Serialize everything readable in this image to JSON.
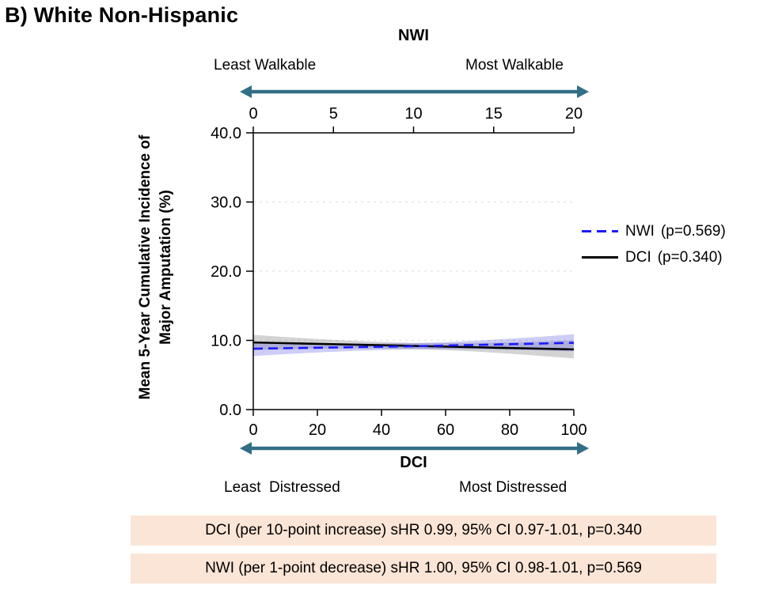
{
  "title": "B) White Non-Hispanic",
  "colors": {
    "arrow": "#326f87",
    "nwi_line": "#1a1aff",
    "dci_line": "#000000",
    "nwi_band": "rgba(90,90,230,0.30)",
    "dci_band": "rgba(130,130,130,0.35)",
    "note_background": "#fbe5d6",
    "gridline": "#dcdcdc"
  },
  "ylabel_lines": [
    "Mean 5-Year Cumulative Incidence of",
    "Major Amputation (%)"
  ],
  "annotations": [
    "DCI (per 10-point increase) sHR 0.99, 95% CI 0.97-1.01, p=0.340",
    "NWI (per 1-point decrease) sHR 1.00, 95% CI 0.98-1.01, p=0.569"
  ],
  "chart_data": {
    "type": "line",
    "title": "B) White Non-Hispanic",
    "ylabel": "Mean 5-Year Cumulative Incidence of Major Amputation (%)",
    "ylim": [
      0,
      40
    ],
    "yticks": [
      0,
      10,
      20,
      30,
      40
    ],
    "ytick_labels": [
      "0.0",
      "10.0",
      "20.0",
      "30.0",
      "40.0"
    ],
    "grid": "horizontal-dashed",
    "legend_position": "right",
    "top_axis": {
      "label": "NWI",
      "range": [
        0,
        20
      ],
      "ticks": [
        0,
        5,
        10,
        15,
        20
      ],
      "tick_labels": [
        "0",
        "5",
        "10",
        "15",
        "20"
      ],
      "left_label": "Least Walkable",
      "right_label": "Most Walkable"
    },
    "bottom_axis": {
      "label": "DCI",
      "range": [
        0,
        100
      ],
      "ticks": [
        0,
        20,
        40,
        60,
        80,
        100
      ],
      "tick_labels": [
        "0",
        "20",
        "40",
        "60",
        "80",
        "100"
      ],
      "left_label": "Least  Distressed",
      "right_label": "Most Distressed"
    },
    "series": [
      {
        "name": "NWI",
        "axis": "top",
        "color": "#1a1aff",
        "dash": true,
        "band_color": "rgba(90,90,230,0.30)",
        "p_label": "(p=0.569)",
        "x": [
          0,
          2,
          4,
          6,
          8,
          10,
          12,
          14,
          16,
          18,
          20
        ],
        "y": [
          8.8,
          8.87,
          8.94,
          9.01,
          9.08,
          9.15,
          9.25,
          9.35,
          9.45,
          9.55,
          9.65
        ],
        "lower": [
          7.75,
          8.02,
          8.26,
          8.46,
          8.61,
          8.7,
          8.75,
          8.73,
          8.65,
          8.55,
          8.4
        ],
        "upper": [
          9.85,
          9.72,
          9.62,
          9.56,
          9.55,
          9.6,
          9.75,
          9.97,
          10.25,
          10.55,
          10.9
        ]
      },
      {
        "name": "DCI",
        "axis": "bottom",
        "color": "#000000",
        "dash": false,
        "band_color": "rgba(130,130,130,0.35)",
        "p_label": "(p=0.340)",
        "x": [
          0,
          10,
          20,
          30,
          40,
          50,
          60,
          70,
          80,
          90,
          100
        ],
        "y": [
          9.7,
          9.6,
          9.5,
          9.4,
          9.3,
          9.2,
          9.1,
          9.0,
          8.9,
          8.8,
          8.7
        ],
        "lower": [
          8.6,
          8.72,
          8.8,
          8.84,
          8.83,
          8.75,
          8.6,
          8.37,
          8.08,
          7.75,
          7.4
        ],
        "upper": [
          10.8,
          10.48,
          10.2,
          9.96,
          9.77,
          9.65,
          9.6,
          9.63,
          9.72,
          9.85,
          10.0
        ]
      }
    ],
    "legend": [
      {
        "label": "NWI",
        "p": "(p=0.569)"
      },
      {
        "label": "DCI",
        "p": "(p=0.340)"
      }
    ]
  }
}
